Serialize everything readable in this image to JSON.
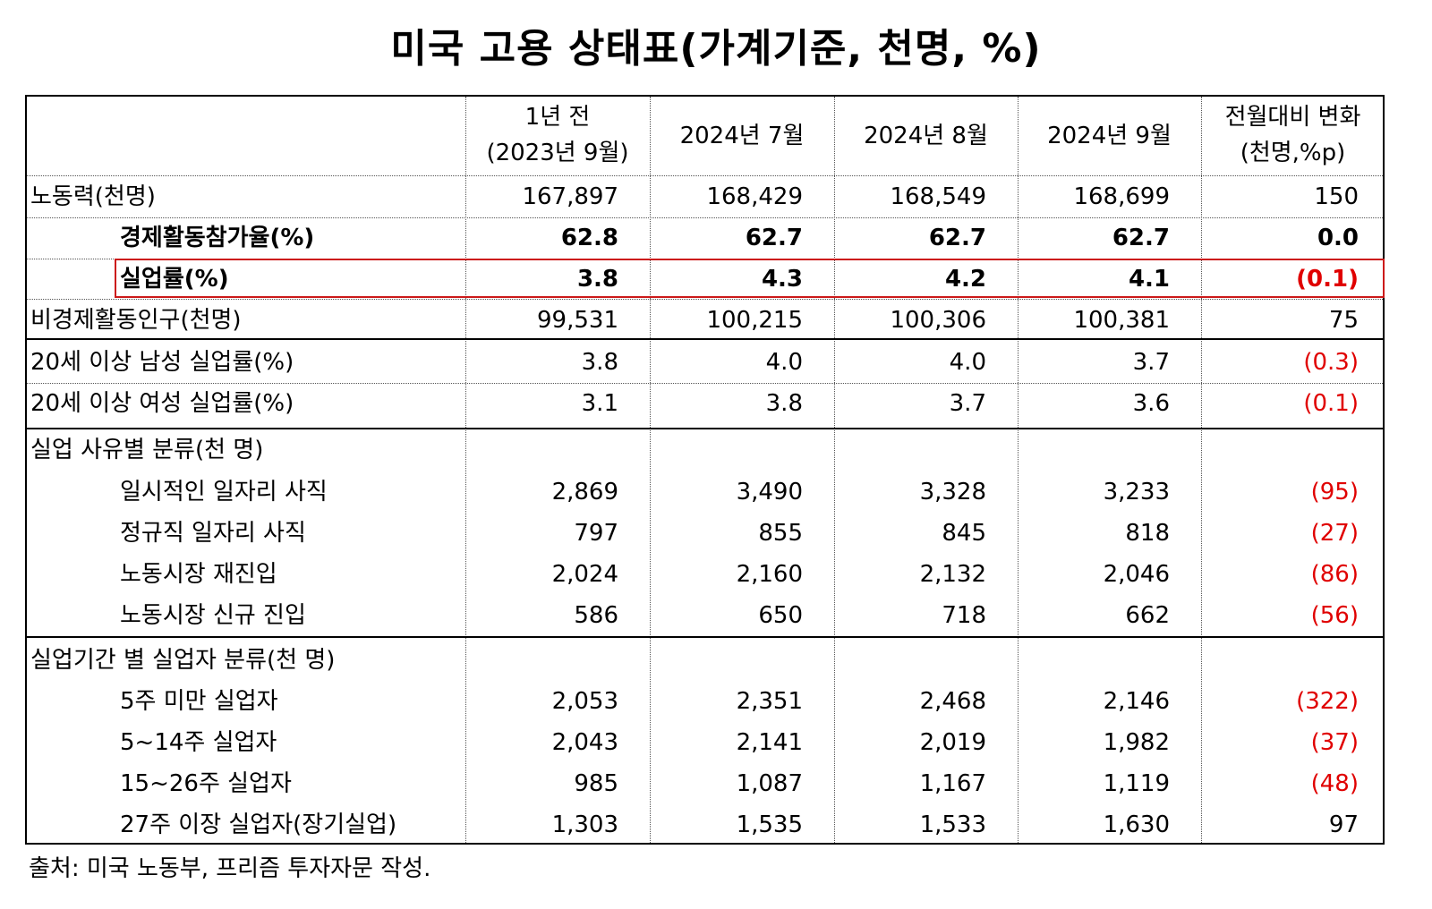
{
  "title": "미국 고용 상태표(가계기준, 천명, %)",
  "headers": [
    "1년 전",
    "(2023년 9월)",
    "2024년 7월",
    "2024년 8월",
    "2024년 9월",
    "전월대비 변화",
    "(천명,%p)"
  ],
  "rows": [
    {
      "label": "노동력(천명)",
      "values": [
        "167,897",
        "168,429",
        "168,549",
        "168,699",
        "150"
      ]
    },
    {
      "label": "경제활동참가율(%)",
      "values": [
        "62.8",
        "62.7",
        "62.7",
        "62.7",
        "0.0"
      ]
    },
    {
      "label": "실업률(%)",
      "values": [
        "3.8",
        "4.3",
        "4.2",
        "4.1",
        "(0.1)"
      ]
    },
    {
      "label": "비경제활동인구(천명)",
      "values": [
        "99,531",
        "100,215",
        "100,306",
        "100,381",
        "75"
      ]
    },
    {
      "label": "20세 이상 남성 실업률(%)",
      "values": [
        "3.8",
        "4.0",
        "4.0",
        "3.7",
        "(0.3)"
      ]
    },
    {
      "label": "20세 이상 여성 실업률(%)",
      "values": [
        "3.1",
        "3.8",
        "3.7",
        "3.6",
        "(0.1)"
      ]
    },
    {
      "label": "실업 사유별 분류(천 명)",
      "values": [
        "",
        "",
        "",
        "",
        ""
      ]
    },
    {
      "label": "일시적인 일자리 사직",
      "values": [
        "2,869",
        "3,490",
        "3,328",
        "3,233",
        "(95)"
      ]
    },
    {
      "label": "정규직 일자리 사직",
      "values": [
        "797",
        "855",
        "845",
        "818",
        "(27)"
      ]
    },
    {
      "label": "노동시장 재진입",
      "values": [
        "2,024",
        "2,160",
        "2,132",
        "2,046",
        "(86)"
      ]
    },
    {
      "label": "노동시장 신규 진입",
      "values": [
        "586",
        "650",
        "718",
        "662",
        "(56)"
      ]
    },
    {
      "label": "실업기간 별 실업자 분류(천 명)",
      "values": [
        "",
        "",
        "",
        "",
        ""
      ]
    },
    {
      "label": "5주 미만 실업자",
      "values": [
        "2,053",
        "2,351",
        "2,468",
        "2,146",
        "(322)"
      ]
    },
    {
      "label": "5~14주 실업자",
      "values": [
        "2,043",
        "2,141",
        "2,019",
        "1,982",
        "(37)"
      ]
    },
    {
      "label": "15~26주 실업자",
      "values": [
        "985",
        "1,087",
        "1,167",
        "1,119",
        "(48)"
      ]
    },
    {
      "label": "27주 이장 실업자(장기실업)",
      "values": [
        "1,303",
        "1,535",
        "1,533",
        "1,630",
        "97"
      ]
    }
  ],
  "source": "출처: 미국 노동부, 프리즘 투자자문 작성.",
  "colors": {
    "negative": "#e00000",
    "highlight_border": "#cc1a1a"
  }
}
